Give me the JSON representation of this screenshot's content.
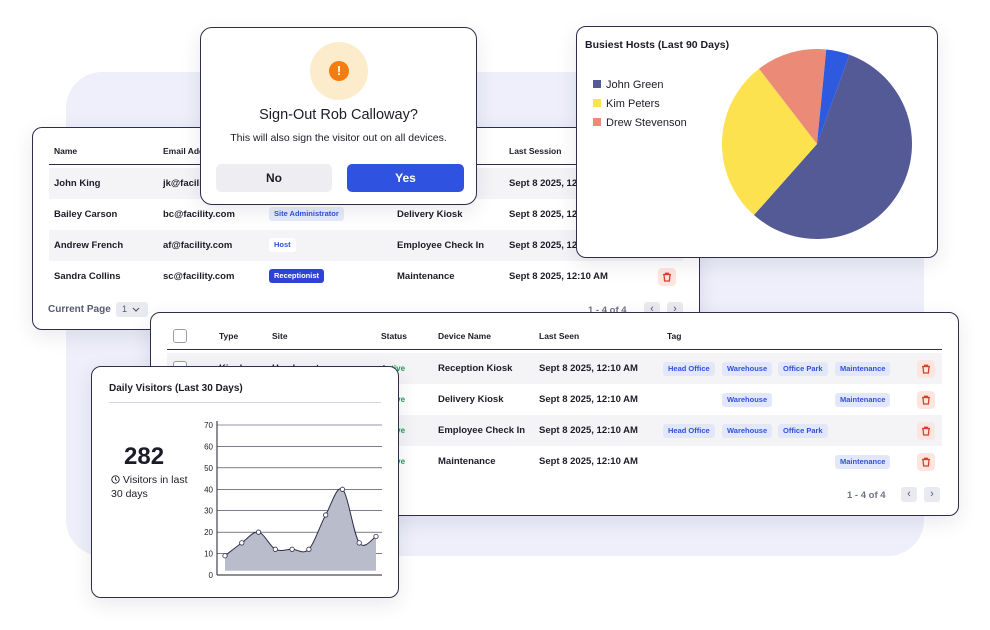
{
  "colors": {
    "primary": "#2f53e0",
    "warning": "#f57c0e",
    "pie_john": "#545a96",
    "pie_kim": "#fde24f",
    "pie_drew": "#ec8a78",
    "pie_other": "#2e5ae0",
    "delete": "#d7402c",
    "active": "#1e9d55"
  },
  "modal": {
    "icon": "exclamation-icon",
    "title": "Sign-Out Rob Calloway?",
    "subtitle": "This will also sign the visitor out on all devices.",
    "no_label": "No",
    "yes_label": "Yes"
  },
  "users": {
    "columns": [
      "Name",
      "Email Address",
      "Last Session"
    ],
    "rows": [
      {
        "name": "John King",
        "email": "jk@facility.com",
        "role": "",
        "device": "",
        "session": "Sept 8 2025, 12:10 AM"
      },
      {
        "name": "Bailey Carson",
        "email": "bc@facility.com",
        "role": "Site Administrator",
        "device": "Delivery Kiosk",
        "session": "Sept 8 2025, 12:10 AM"
      },
      {
        "name": "Andrew French",
        "email": "af@facility.com",
        "role": "Host",
        "device": "Employee Check In",
        "session": "Sept 8 2025, 12:10 AM"
      },
      {
        "name": "Sandra Collins",
        "email": "sc@facility.com",
        "role": "Receptionist",
        "device": "Maintenance",
        "session": "Sept 8 2025, 12:10 AM"
      }
    ],
    "visible_email_first": "jk@facili",
    "visible_email_header": "Email Addr",
    "pager_label": "Current Page",
    "page_value": "1",
    "count": "1 - 4 of 4"
  },
  "pie": {
    "title": "Busiest Hosts (Last 90 Days)",
    "legend": [
      "John Green",
      "Kim Peters",
      "Drew Stevenson"
    ]
  },
  "devices": {
    "columns": [
      "Type",
      "Site",
      "Status",
      "Device Name",
      "Last Seen",
      "Tag"
    ],
    "rows": [
      {
        "type": "Kiosk",
        "site": "Headquarters",
        "status": "Active",
        "device": "Reception Kiosk",
        "seen": "Sept 8 2025, 12:10 AM",
        "tags": [
          "Head Office",
          "Warehouse",
          "Office Park",
          "Maintenance"
        ]
      },
      {
        "status": "Active",
        "device": "Delivery Kiosk",
        "seen": "Sept 8 2025, 12:10 AM",
        "tags": [
          "Warehouse",
          "Maintenance"
        ]
      },
      {
        "status": "Active",
        "device": "Employee Check In",
        "seen": "Sept 8 2025, 12:10 AM",
        "tags": [
          "Head Office",
          "Warehouse",
          "Office Park"
        ]
      },
      {
        "status": "Active",
        "device": "Maintenance",
        "seen": "Sept 8 2025, 12:10 AM",
        "tags": [
          "Maintenance"
        ]
      }
    ],
    "count": "1 - 4 of 4"
  },
  "visitors": {
    "title": "Daily Visitors (Last 30 Days)",
    "count": "282",
    "sub": "Visitors in last 30 days",
    "clock_icon": "clock-icon"
  },
  "chart_data": [
    {
      "type": "pie",
      "title": "Busiest Hosts (Last 90 Days)",
      "categories": [
        "John Green",
        "Kim Peters",
        "Drew Stevenson",
        ""
      ],
      "values": [
        56,
        28,
        12,
        4
      ],
      "legend": "left"
    },
    {
      "type": "area",
      "title": "Daily Visitors (Last 30 Days)",
      "x": [
        0,
        1,
        2,
        3,
        4,
        5,
        6,
        7,
        8,
        9
      ],
      "y": [
        9,
        15,
        20,
        12,
        12,
        12,
        28,
        40,
        15,
        18
      ],
      "ylim": [
        0,
        70
      ],
      "yticks": [
        0,
        10,
        20,
        30,
        40,
        50,
        60,
        70
      ],
      "grid": true
    }
  ]
}
